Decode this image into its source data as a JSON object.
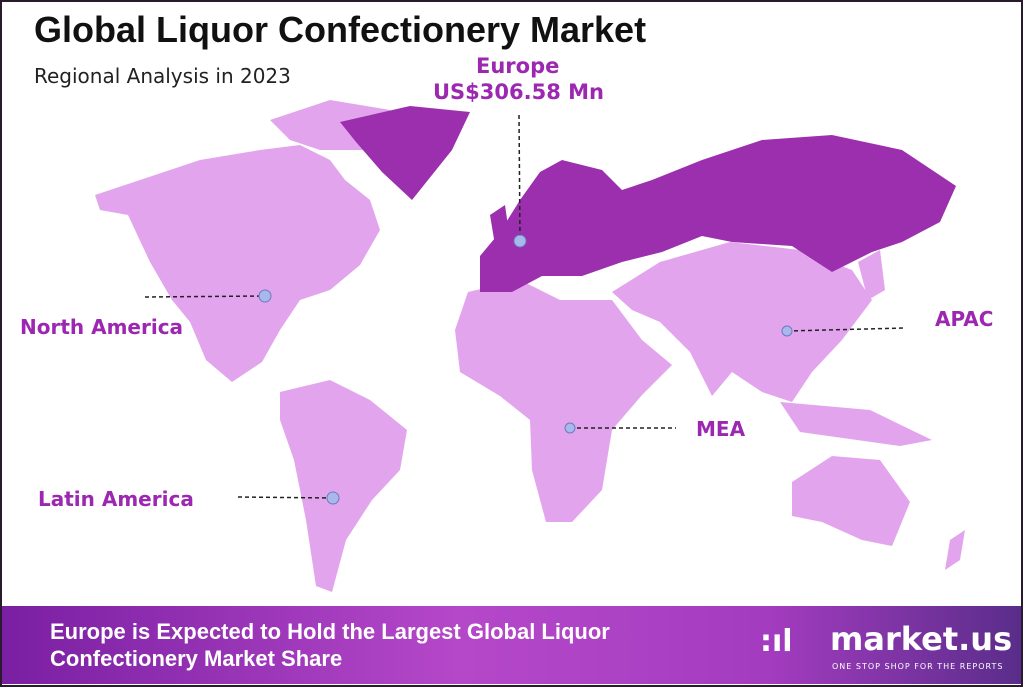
{
  "header": {
    "title": "Global Liquor Confectionery Market",
    "subtitle": "Regional Analysis in 2023"
  },
  "colors": {
    "highlight_region": "#9b2fae",
    "other_regions": "#e2a4ec",
    "label": "#9c27b0",
    "marker": "#a9b8ea"
  },
  "regions": [
    {
      "name": "North America",
      "highlighted": false
    },
    {
      "name": "Europe",
      "value": "US$306.58 Mn",
      "highlighted": true
    },
    {
      "name": "APAC",
      "highlighted": false
    },
    {
      "name": "MEA",
      "highlighted": false
    },
    {
      "name": "Latin America",
      "highlighted": false
    }
  ],
  "footer": {
    "headline": "Europe is Expected to Hold the Largest Global Liquor Confectionery Market Share"
  },
  "logo": {
    "name": "market.us",
    "tagline": "ONE STOP SHOP FOR THE REPORTS"
  }
}
